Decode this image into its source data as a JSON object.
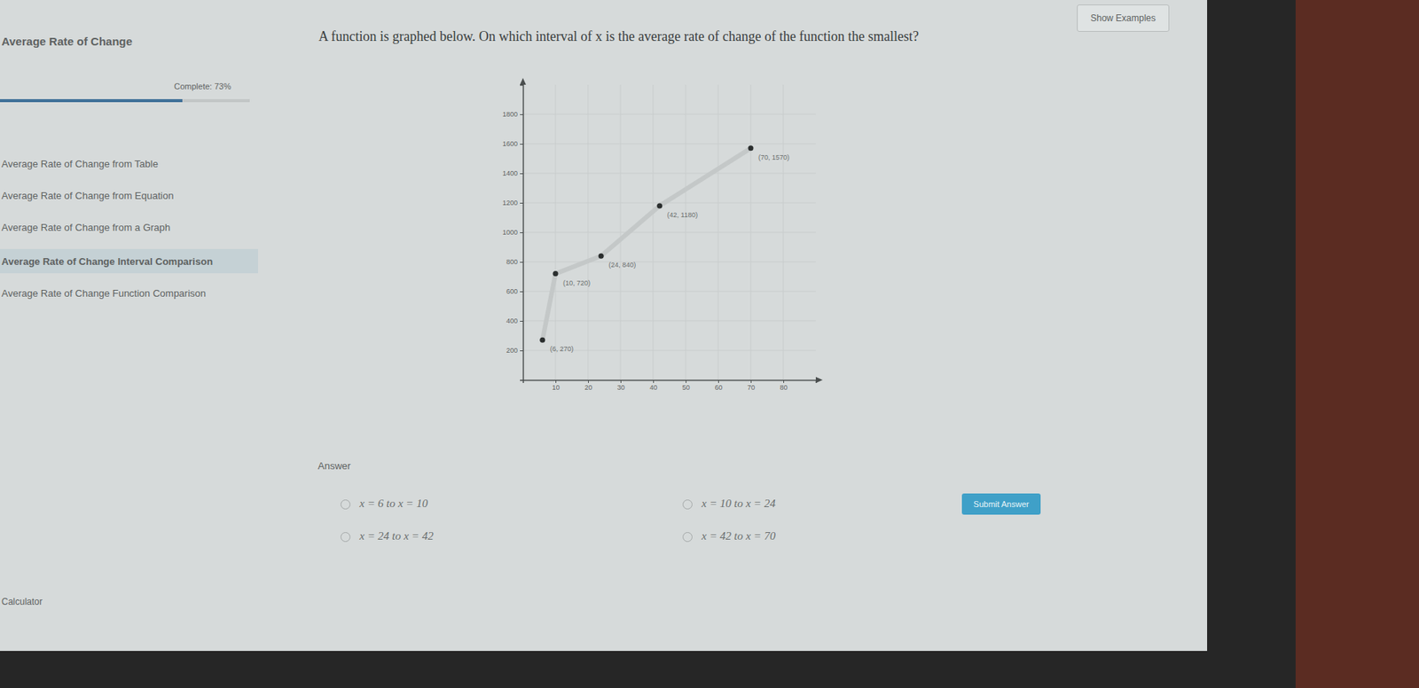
{
  "page": {
    "show_examples": "Show Examples",
    "section_title": "Average Rate of Change",
    "progress_label": "Complete: 73%",
    "progress_value": 73,
    "menu": [
      "Average Rate of Change from Table",
      "Average Rate of Change from Equation",
      "Average Rate of Change from a Graph",
      "Average Rate of Change Interval Comparison",
      "Average Rate of Change Function Comparison"
    ],
    "active_menu": "Average Rate of Change Interval Comparison",
    "question": "A function is graphed below. On which interval of x is the average rate of change of the function the smallest?",
    "answer_heading": "Answer",
    "options": [
      "x = 6 to x = 10",
      "x = 10 to x = 24",
      "x = 24 to x = 42",
      "x = 42 to x = 70"
    ],
    "submit": "Submit Answer",
    "calculator": "Calculator"
  },
  "chart_data": {
    "type": "line",
    "x": [
      6,
      10,
      24,
      42,
      70
    ],
    "values": [
      270,
      720,
      840,
      1180,
      1570
    ],
    "value_labels": [
      "(6, 270)",
      "(10, 720)",
      "(24, 840)",
      "(42, 1180)",
      "(70, 1570)"
    ],
    "data_labels": true,
    "xlim": [
      0,
      90
    ],
    "ylim": [
      0,
      2000
    ],
    "xticks": [
      10,
      20,
      30,
      40,
      50,
      60,
      70,
      80
    ],
    "yticks": [
      200,
      400,
      600,
      800,
      1000,
      1200,
      1400,
      1600,
      1800
    ],
    "grid": true,
    "color": "#c4c8c8",
    "marker": "circle"
  }
}
